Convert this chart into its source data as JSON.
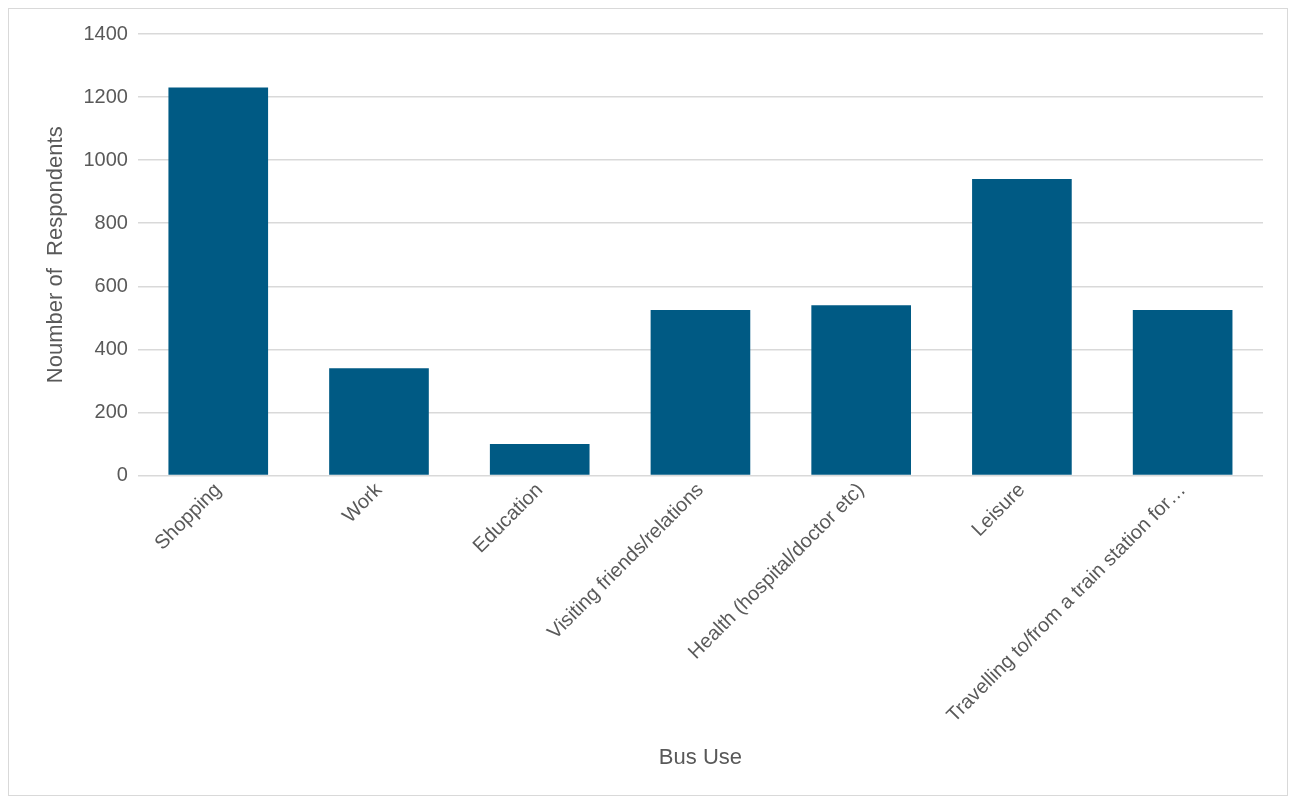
{
  "chart_data": {
    "type": "bar",
    "xlabel": "Bus Use",
    "ylabel": "Noumber of  Respondents",
    "categories": [
      "Shopping",
      "Work",
      "Education",
      "Visiting friends/relations",
      "Health (hospital/doctor etc)",
      "Leisure",
      "Travelling to/from a train station for…"
    ],
    "values": [
      1230,
      340,
      100,
      525,
      540,
      940,
      525
    ],
    "color": "#005a84",
    "ylim": [
      0,
      1400
    ],
    "yticks": [
      0,
      200,
      400,
      600,
      800,
      1000,
      1200,
      1400
    ],
    "grid": "y"
  }
}
